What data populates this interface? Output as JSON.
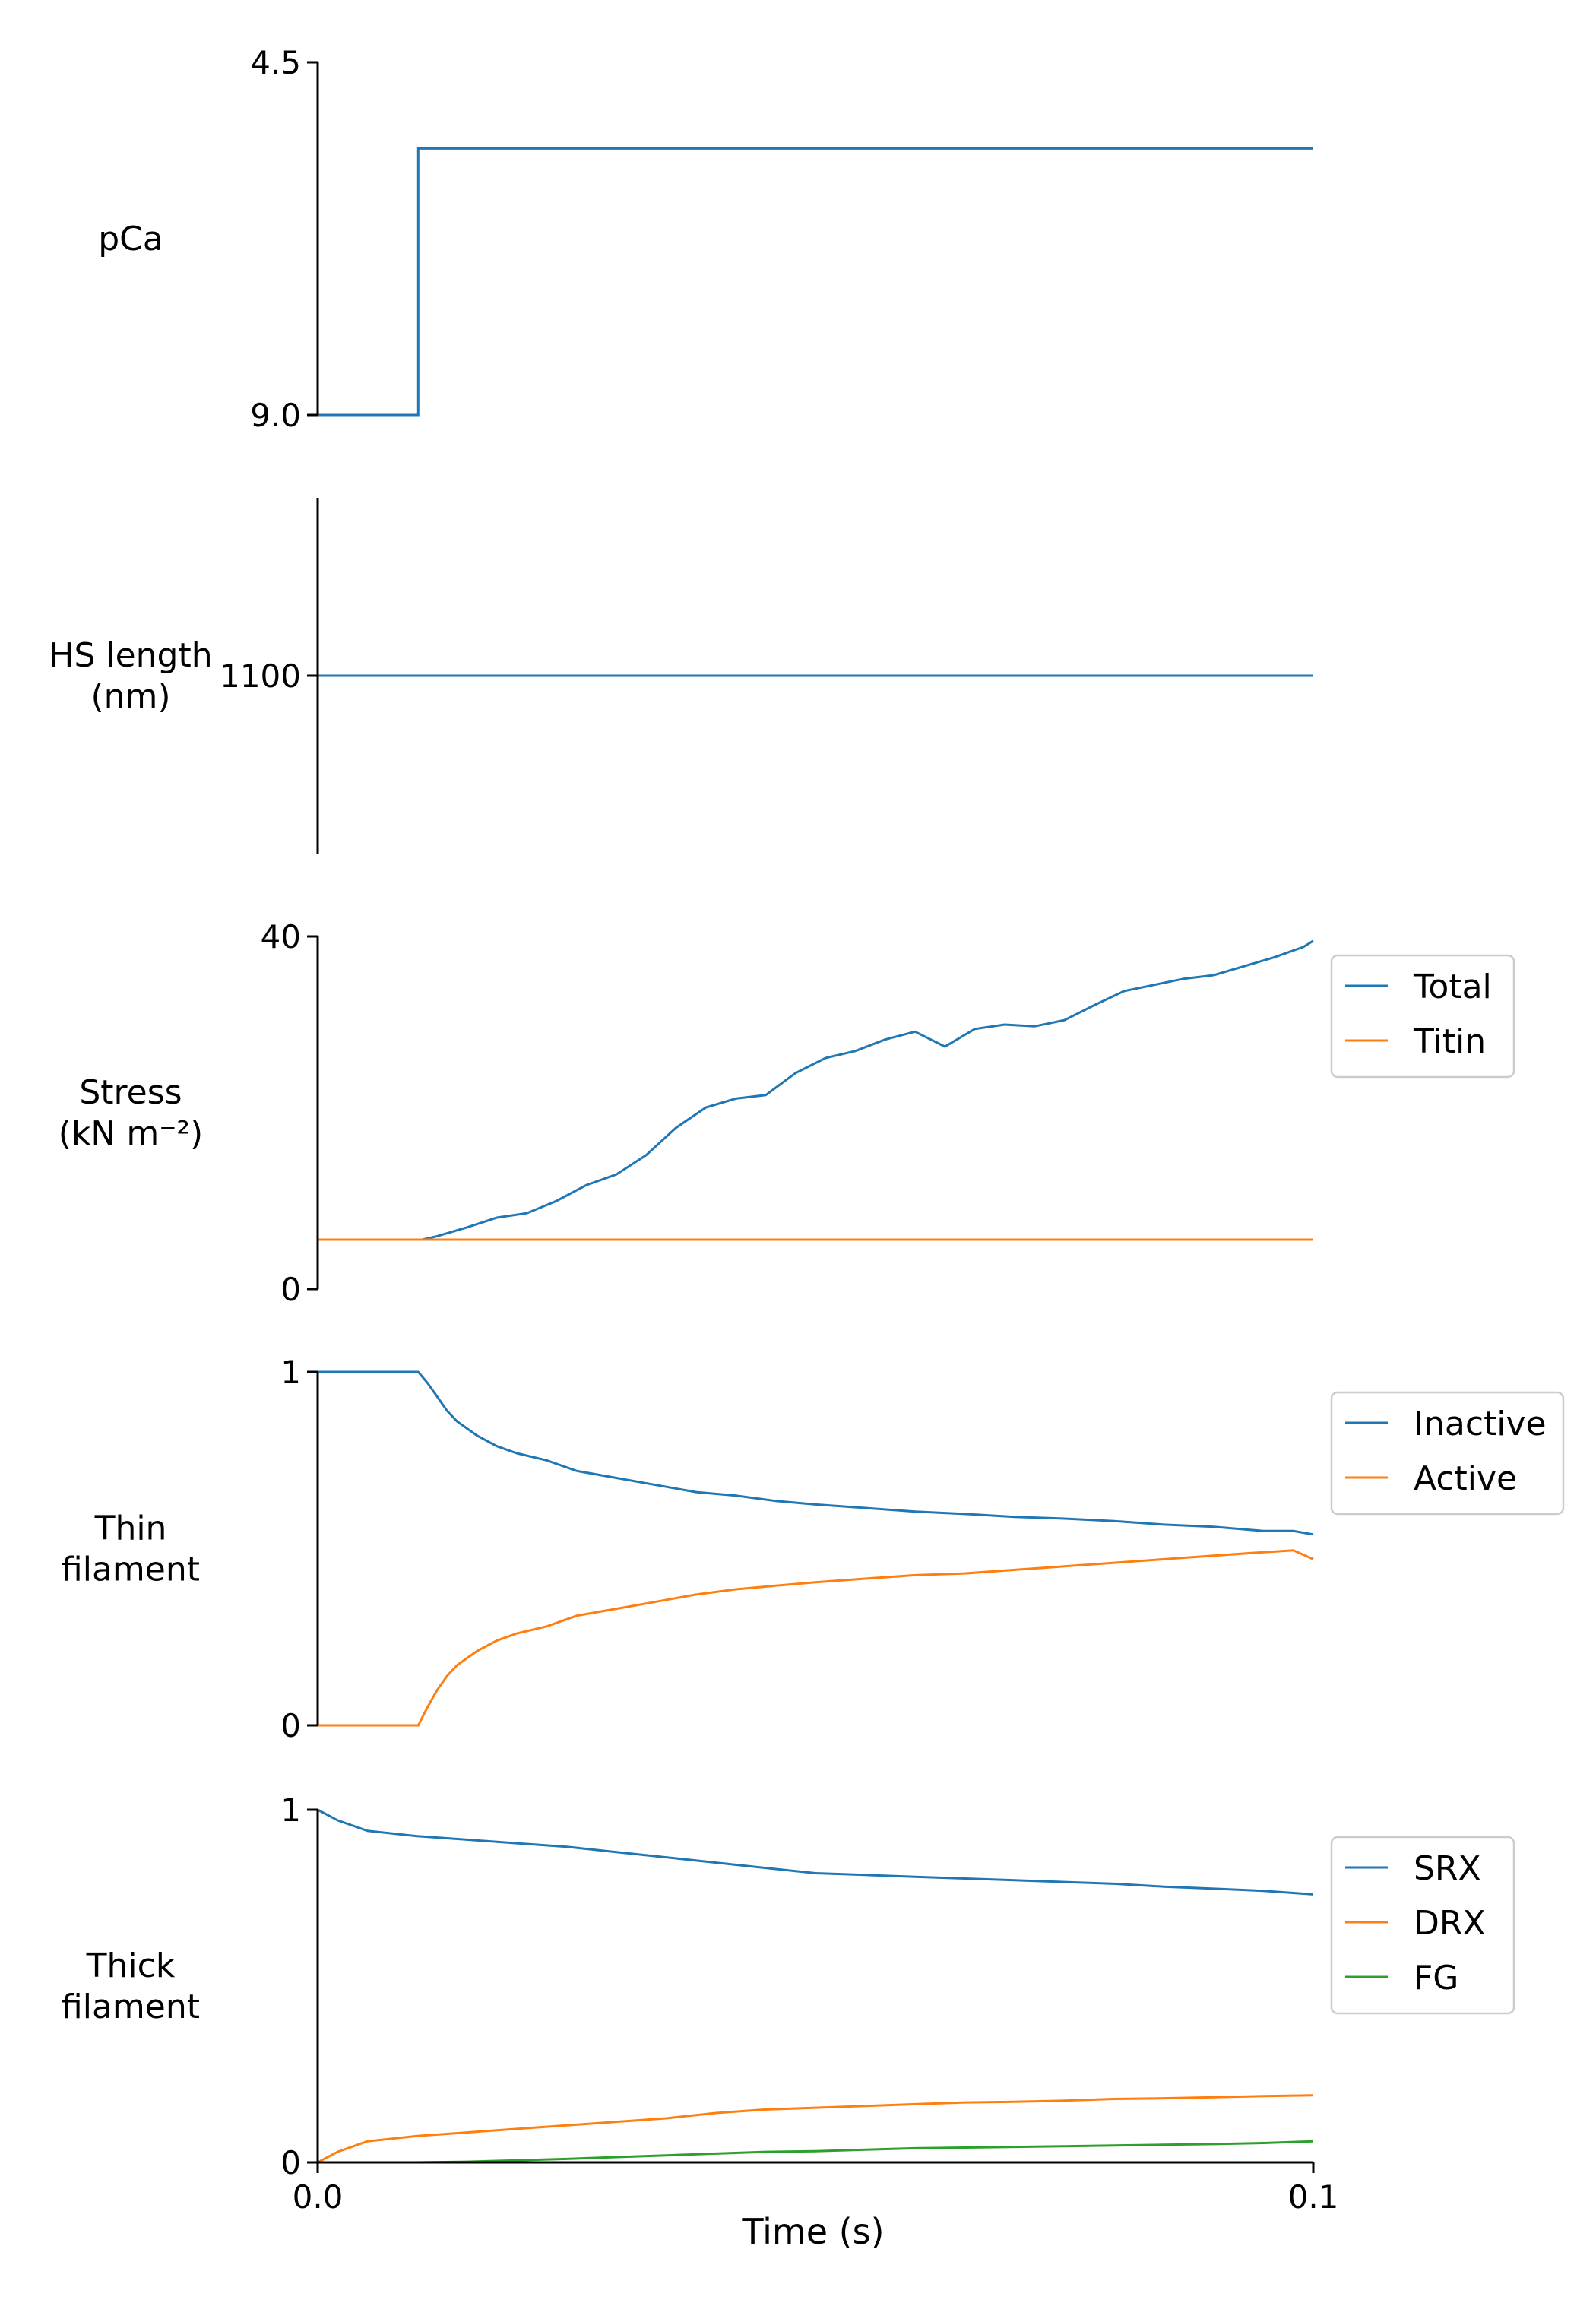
{
  "figure": {
    "x_axis": {
      "label": "Time (s)",
      "ticks": [
        "0.0",
        "0.1"
      ]
    }
  },
  "chart_data": [
    {
      "id": "pca",
      "type": "line",
      "ylabel": [
        "pCa"
      ],
      "ylim": [
        9.0,
        4.5
      ],
      "yticks": [
        {
          "value": 9.0,
          "label": "9.0"
        },
        {
          "value": 4.5,
          "label": "4.5"
        }
      ],
      "xlim": [
        0,
        0.1
      ],
      "series": [
        {
          "color": "#1f77b4",
          "x": [
            0,
            0.0101,
            0.0101,
            0.1
          ],
          "y": [
            9.0,
            9.0,
            5.6,
            5.6
          ]
        }
      ]
    },
    {
      "id": "hs_length",
      "type": "line",
      "ylabel": [
        "HS length",
        "(nm)"
      ],
      "ylim": [
        1090,
        1110
      ],
      "yticks": [
        {
          "value": 1100,
          "label": "1100"
        }
      ],
      "xlim": [
        0,
        0.1
      ],
      "series": [
        {
          "color": "#1f77b4",
          "x": [
            0,
            0.1
          ],
          "y": [
            1100,
            1100
          ]
        }
      ]
    },
    {
      "id": "stress",
      "type": "line",
      "ylabel": [
        "Stress",
        "(kN m⁻²)"
      ],
      "ylim": [
        0,
        40
      ],
      "yticks": [
        {
          "value": 0,
          "label": "0"
        },
        {
          "value": 40,
          "label": "40"
        }
      ],
      "xlim": [
        0,
        0.1
      ],
      "legend": {
        "position": "right-top",
        "entries": [
          "Total",
          "Titin"
        ]
      },
      "series": [
        {
          "name": "Total",
          "color": "#1f77b4",
          "x": [
            0,
            0.0105,
            0.012,
            0.015,
            0.018,
            0.021,
            0.024,
            0.027,
            0.03,
            0.033,
            0.036,
            0.039,
            0.042,
            0.045,
            0.048,
            0.051,
            0.054,
            0.057,
            0.06,
            0.063,
            0.066,
            0.069,
            0.072,
            0.075,
            0.078,
            0.081,
            0.084,
            0.087,
            0.09,
            0.093,
            0.096,
            0.099,
            0.1
          ],
          "y": [
            5.6,
            5.6,
            6.0,
            7.0,
            8.1,
            8.6,
            10.0,
            11.8,
            13.0,
            15.2,
            18.3,
            20.6,
            21.6,
            22.0,
            24.5,
            26.2,
            27.0,
            28.3,
            29.2,
            27.5,
            29.5,
            30.0,
            29.8,
            30.5,
            32.2,
            33.8,
            34.5,
            35.2,
            35.6,
            36.6,
            37.6,
            38.8,
            39.5
          ]
        },
        {
          "name": "Titin",
          "color": "#ff7f0e",
          "x": [
            0,
            0.1
          ],
          "y": [
            5.6,
            5.6
          ]
        }
      ]
    },
    {
      "id": "thin_filament",
      "type": "line",
      "ylabel": [
        "Thin",
        "filament"
      ],
      "ylim": [
        0,
        1
      ],
      "yticks": [
        {
          "value": 0,
          "label": "0"
        },
        {
          "value": 1,
          "label": "1"
        }
      ],
      "xlim": [
        0,
        0.1
      ],
      "legend": {
        "position": "right-top",
        "entries": [
          "Inactive",
          "Active"
        ]
      },
      "series": [
        {
          "name": "Inactive",
          "color": "#1f77b4",
          "x": [
            0,
            0.0101,
            0.011,
            0.012,
            0.013,
            0.014,
            0.016,
            0.018,
            0.02,
            0.023,
            0.026,
            0.03,
            0.034,
            0.038,
            0.042,
            0.046,
            0.05,
            0.055,
            0.06,
            0.065,
            0.07,
            0.075,
            0.08,
            0.085,
            0.09,
            0.095,
            0.098,
            0.1
          ],
          "y": [
            1.0,
            1.0,
            0.97,
            0.93,
            0.89,
            0.86,
            0.82,
            0.79,
            0.77,
            0.75,
            0.72,
            0.7,
            0.68,
            0.66,
            0.65,
            0.635,
            0.625,
            0.615,
            0.605,
            0.598,
            0.59,
            0.585,
            0.578,
            0.568,
            0.562,
            0.55,
            0.55,
            0.54
          ]
        },
        {
          "name": "Active",
          "color": "#ff7f0e",
          "x": [
            0,
            0.0101,
            0.011,
            0.012,
            0.013,
            0.014,
            0.016,
            0.018,
            0.02,
            0.023,
            0.026,
            0.03,
            0.034,
            0.038,
            0.042,
            0.046,
            0.05,
            0.055,
            0.06,
            0.065,
            0.07,
            0.075,
            0.08,
            0.085,
            0.09,
            0.095,
            0.098,
            0.1
          ],
          "y": [
            0.0,
            0.0,
            0.05,
            0.1,
            0.14,
            0.17,
            0.21,
            0.24,
            0.26,
            0.28,
            0.31,
            0.33,
            0.35,
            0.37,
            0.385,
            0.395,
            0.405,
            0.415,
            0.425,
            0.43,
            0.44,
            0.45,
            0.46,
            0.47,
            0.48,
            0.49,
            0.495,
            0.47
          ]
        }
      ]
    },
    {
      "id": "thick_filament",
      "type": "line",
      "ylabel": [
        "Thick",
        "filament"
      ],
      "ylim": [
        0,
        1
      ],
      "yticks": [
        {
          "value": 0,
          "label": "0"
        },
        {
          "value": 1,
          "label": "1"
        }
      ],
      "xlim": [
        0,
        0.1
      ],
      "legend": {
        "position": "right-top",
        "entries": [
          "SRX",
          "DRX",
          "FG"
        ]
      },
      "series": [
        {
          "name": "SRX",
          "color": "#1f77b4",
          "x": [
            0,
            0.002,
            0.005,
            0.01,
            0.015,
            0.02,
            0.025,
            0.03,
            0.035,
            0.04,
            0.045,
            0.05,
            0.055,
            0.06,
            0.065,
            0.07,
            0.075,
            0.08,
            0.085,
            0.09,
            0.095,
            0.1
          ],
          "y": [
            1.0,
            0.97,
            0.94,
            0.925,
            0.915,
            0.905,
            0.895,
            0.88,
            0.865,
            0.85,
            0.835,
            0.82,
            0.815,
            0.81,
            0.805,
            0.8,
            0.795,
            0.79,
            0.782,
            0.776,
            0.77,
            0.76
          ]
        },
        {
          "name": "DRX",
          "color": "#ff7f0e",
          "x": [
            0,
            0.002,
            0.005,
            0.01,
            0.015,
            0.02,
            0.025,
            0.03,
            0.035,
            0.04,
            0.045,
            0.05,
            0.055,
            0.06,
            0.065,
            0.07,
            0.075,
            0.08,
            0.085,
            0.09,
            0.095,
            0.1
          ],
          "y": [
            0.0,
            0.03,
            0.06,
            0.075,
            0.085,
            0.095,
            0.105,
            0.115,
            0.125,
            0.14,
            0.15,
            0.155,
            0.16,
            0.165,
            0.17,
            0.172,
            0.175,
            0.18,
            0.182,
            0.185,
            0.188,
            0.19
          ]
        },
        {
          "name": "FG",
          "color": "#2ca02c",
          "x": [
            0,
            0.01,
            0.015,
            0.02,
            0.025,
            0.03,
            0.035,
            0.04,
            0.045,
            0.05,
            0.055,
            0.06,
            0.065,
            0.07,
            0.075,
            0.08,
            0.085,
            0.09,
            0.095,
            0.1
          ],
          "y": [
            0.0,
            0.0,
            0.002,
            0.006,
            0.01,
            0.015,
            0.02,
            0.025,
            0.03,
            0.032,
            0.036,
            0.04,
            0.042,
            0.044,
            0.046,
            0.048,
            0.05,
            0.052,
            0.055,
            0.06
          ]
        }
      ]
    }
  ]
}
